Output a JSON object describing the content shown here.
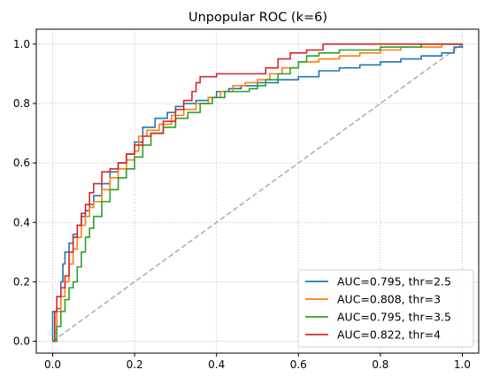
{
  "chart_data": {
    "type": "line",
    "title": "Unpopular ROC (k=6)",
    "xlabel": "",
    "ylabel": "",
    "xlim": [
      -0.04,
      1.04
    ],
    "ylim": [
      -0.04,
      1.05
    ],
    "xticks": [
      0.0,
      0.2,
      0.4,
      0.6,
      0.8,
      1.0
    ],
    "yticks": [
      0.0,
      0.2,
      0.4,
      0.6,
      0.8,
      1.0
    ],
    "xtick_labels": [
      "0.0",
      "0.2",
      "0.4",
      "0.6",
      "0.8",
      "1.0"
    ],
    "ytick_labels": [
      "0.0",
      "0.2",
      "0.4",
      "0.6",
      "0.8",
      "1.0"
    ],
    "grid": true,
    "legend_position": "lower-right",
    "diagonal": {
      "x": [
        0,
        1
      ],
      "y": [
        0,
        1
      ],
      "color": "#b0b0b0",
      "style": "dashed"
    },
    "series": [
      {
        "name": "AUC=0.795, thr=2.5",
        "color": "#1f77b4",
        "x": [
          0,
          0,
          0.01,
          0.02,
          0.025,
          0.03,
          0.04,
          0.05,
          0.06,
          0.07,
          0.08,
          0.09,
          0.1,
          0.12,
          0.14,
          0.16,
          0.18,
          0.2,
          0.22,
          0.25,
          0.28,
          0.3,
          0.32,
          0.35,
          0.38,
          0.4,
          0.43,
          0.46,
          0.5,
          0.55,
          0.6,
          0.65,
          0.7,
          0.75,
          0.8,
          0.85,
          0.9,
          0.95,
          0.98,
          1.0
        ],
        "y": [
          0,
          0.1,
          0.11,
          0.2,
          0.26,
          0.3,
          0.33,
          0.36,
          0.39,
          0.42,
          0.44,
          0.46,
          0.49,
          0.53,
          0.57,
          0.6,
          0.63,
          0.67,
          0.72,
          0.75,
          0.77,
          0.79,
          0.8,
          0.81,
          0.82,
          0.84,
          0.85,
          0.86,
          0.87,
          0.88,
          0.89,
          0.91,
          0.92,
          0.93,
          0.94,
          0.95,
          0.96,
          0.97,
          0.99,
          1.0
        ]
      },
      {
        "name": "AUC=0.808, thr=3",
        "color": "#ff7f0e",
        "x": [
          0,
          0.005,
          0.01,
          0.02,
          0.03,
          0.04,
          0.05,
          0.06,
          0.07,
          0.08,
          0.09,
          0.1,
          0.12,
          0.14,
          0.16,
          0.18,
          0.2,
          0.21,
          0.23,
          0.26,
          0.29,
          0.32,
          0.35,
          0.38,
          0.41,
          0.44,
          0.47,
          0.5,
          0.53,
          0.56,
          0.6,
          0.65,
          0.7,
          0.75,
          0.8,
          0.85,
          0.9,
          0.95,
          1.0
        ],
        "y": [
          0,
          0.03,
          0.1,
          0.15,
          0.2,
          0.26,
          0.31,
          0.35,
          0.39,
          0.42,
          0.45,
          0.47,
          0.51,
          0.55,
          0.58,
          0.61,
          0.64,
          0.69,
          0.71,
          0.73,
          0.76,
          0.78,
          0.8,
          0.82,
          0.84,
          0.86,
          0.87,
          0.88,
          0.9,
          0.92,
          0.94,
          0.95,
          0.96,
          0.97,
          0.98,
          0.99,
          0.99,
          1.0,
          1.0
        ]
      },
      {
        "name": "AUC=0.795, thr=3.5",
        "color": "#2ca02c",
        "x": [
          0,
          0.01,
          0.02,
          0.03,
          0.04,
          0.05,
          0.06,
          0.07,
          0.08,
          0.09,
          0.1,
          0.12,
          0.14,
          0.16,
          0.18,
          0.2,
          0.22,
          0.24,
          0.27,
          0.3,
          0.33,
          0.36,
          0.39,
          0.42,
          0.45,
          0.48,
          0.5,
          0.52,
          0.55,
          0.58,
          0.6,
          0.62,
          0.65,
          0.7,
          0.75,
          0.8,
          0.85,
          0.9,
          0.95,
          1.0
        ],
        "y": [
          0,
          0.05,
          0.1,
          0.14,
          0.18,
          0.2,
          0.25,
          0.3,
          0.35,
          0.38,
          0.42,
          0.47,
          0.51,
          0.55,
          0.58,
          0.62,
          0.66,
          0.7,
          0.72,
          0.75,
          0.77,
          0.8,
          0.82,
          0.84,
          0.84,
          0.85,
          0.86,
          0.88,
          0.9,
          0.92,
          0.94,
          0.96,
          0.97,
          0.98,
          0.98,
          0.99,
          0.99,
          1.0,
          1.0,
          1.0
        ]
      },
      {
        "name": "AUC=0.822, thr=4",
        "color": "#d62728",
        "x": [
          0,
          0.005,
          0.01,
          0.02,
          0.03,
          0.04,
          0.05,
          0.06,
          0.07,
          0.08,
          0.09,
          0.1,
          0.12,
          0.14,
          0.16,
          0.18,
          0.2,
          0.22,
          0.24,
          0.27,
          0.3,
          0.32,
          0.34,
          0.35,
          0.36,
          0.38,
          0.4,
          0.42,
          0.44,
          0.48,
          0.5,
          0.52,
          0.55,
          0.58,
          0.62,
          0.66,
          0.7,
          0.8,
          0.9,
          1.0
        ],
        "y": [
          0,
          0.1,
          0.15,
          0.18,
          0.22,
          0.3,
          0.35,
          0.39,
          0.43,
          0.46,
          0.5,
          0.53,
          0.57,
          0.58,
          0.6,
          0.63,
          0.66,
          0.69,
          0.7,
          0.74,
          0.78,
          0.81,
          0.84,
          0.87,
          0.89,
          0.89,
          0.9,
          0.9,
          0.9,
          0.9,
          0.9,
          0.92,
          0.95,
          0.97,
          0.98,
          1.0,
          1.0,
          1.0,
          1.0,
          1.0
        ]
      }
    ]
  }
}
